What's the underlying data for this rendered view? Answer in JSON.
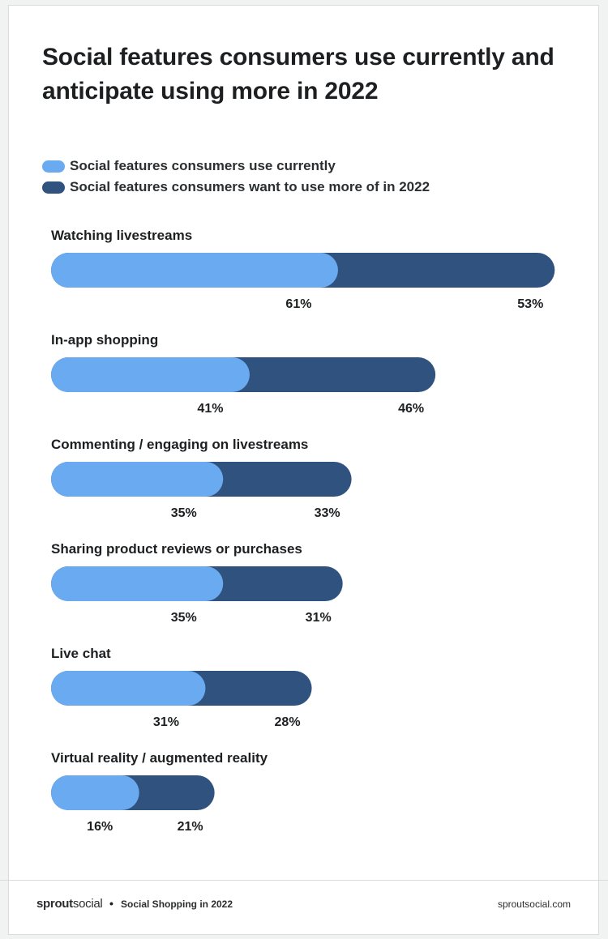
{
  "footer": {
    "brand_bold": "sprout",
    "brand_light": "social",
    "separator": "•",
    "report": "Social Shopping in 2022",
    "site": "sproutsocial.com"
  },
  "colors": {
    "current": "#6aaaf0",
    "future": "#30527f"
  },
  "chart_data": {
    "type": "bar",
    "orientation": "horizontal-stacked",
    "title": "Social features consumers use currently and anticipate using more in 2022",
    "categories": [
      "Watching livestreams",
      "In-app shopping",
      "Commenting / engaging on livestreams",
      "Sharing product reviews or purchases",
      "Live chat",
      "Virtual reality / augmented reality"
    ],
    "series": [
      {
        "name": "Social features consumers use currently",
        "values": [
          61,
          41,
          35,
          35,
          31,
          16
        ]
      },
      {
        "name": "Social features consumers want to use more of in 2022",
        "values": [
          53,
          46,
          33,
          31,
          28,
          21
        ]
      }
    ],
    "value_suffix": "%",
    "legend_position": "top-left",
    "grid": false
  }
}
